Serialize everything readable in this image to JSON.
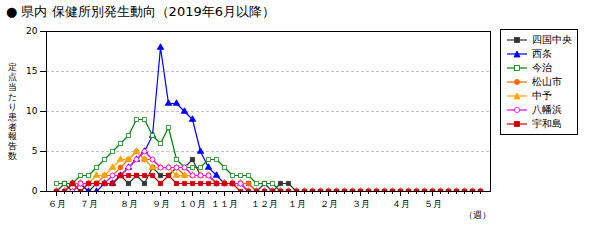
{
  "chart_data": {
    "type": "line",
    "title": "● 県内 保健所別発生動向（2019年6月以降）",
    "ylabel": "定点当たり患者報告数",
    "xlabel": "（週）",
    "categories": [
      "６月",
      null,
      null,
      null,
      "７月",
      null,
      null,
      null,
      null,
      "８月",
      null,
      null,
      null,
      "９月",
      null,
      null,
      null,
      "１０月",
      null,
      null,
      null,
      "１１月",
      null,
      null,
      null,
      null,
      "１２月",
      null,
      null,
      null,
      "１月",
      null,
      null,
      null,
      "２月",
      null,
      null,
      null,
      "３月",
      null,
      null,
      null,
      null,
      "４月",
      null,
      null,
      null,
      "５月",
      null,
      null,
      null,
      null,
      null,
      null
    ],
    "ylim": [
      0,
      20
    ],
    "yticks": [
      0,
      5,
      10,
      15,
      20
    ],
    "grid": true,
    "legend": "right",
    "series": [
      {
        "name": "四国中央",
        "color": "#333333",
        "marker": "square",
        "values": [
          0,
          1,
          0,
          1,
          0,
          1,
          1,
          1,
          2,
          1,
          2,
          1,
          3,
          2,
          2,
          3,
          3,
          4,
          2,
          2,
          1,
          1,
          1,
          1,
          1,
          0,
          1,
          0,
          1,
          1,
          0,
          0,
          0,
          0,
          0,
          0,
          0,
          0,
          0,
          0,
          0,
          0,
          0,
          0,
          0,
          0,
          0,
          0,
          0,
          0,
          0,
          0,
          0,
          0
        ]
      },
      {
        "name": "西条",
        "color": "#0000ff",
        "marker": "triangle",
        "values": [
          0,
          0,
          1,
          1,
          0,
          0,
          1,
          1,
          2,
          3,
          4,
          5,
          7,
          18,
          11,
          11,
          10,
          9,
          5,
          3,
          2,
          1,
          1,
          1,
          0,
          0,
          0,
          0,
          0,
          0,
          0,
          0,
          0,
          0,
          0,
          0,
          0,
          0,
          0,
          0,
          0,
          0,
          0,
          0,
          0,
          0,
          0,
          0,
          0,
          0,
          0,
          0,
          0,
          0
        ]
      },
      {
        "name": "今治",
        "color": "#008000",
        "marker": "square-open",
        "values": [
          1,
          1,
          1,
          2,
          2,
          3,
          4,
          5,
          6,
          7,
          9,
          9,
          7,
          6,
          8,
          4,
          3,
          3,
          3,
          4,
          4,
          3,
          2,
          2,
          2,
          1,
          1,
          1,
          0,
          0,
          0,
          0,
          0,
          0,
          0,
          0,
          0,
          0,
          0,
          0,
          0,
          0,
          0,
          0,
          0,
          0,
          0,
          0,
          0,
          0,
          0,
          0,
          0,
          0
        ]
      },
      {
        "name": "松山市",
        "color": "#ff6600",
        "marker": "circle",
        "values": [
          0,
          0,
          1,
          1,
          1,
          1,
          2,
          2,
          3,
          4,
          5,
          4,
          4,
          3,
          3,
          3,
          2,
          2,
          2,
          2,
          1,
          1,
          1,
          1,
          1,
          0,
          0,
          0,
          0,
          0,
          0,
          0,
          0,
          0,
          0,
          0,
          0,
          0,
          0,
          0,
          0,
          0,
          0,
          0,
          0,
          0,
          0,
          0,
          0,
          0,
          0,
          0,
          0,
          0
        ]
      },
      {
        "name": "中予",
        "color": "#ffa500",
        "marker": "triangle",
        "values": [
          0,
          0,
          0,
          1,
          1,
          2,
          2,
          3,
          4,
          4,
          5,
          4,
          3,
          3,
          3,
          2,
          2,
          2,
          2,
          2,
          1,
          1,
          1,
          1,
          0,
          0,
          0,
          0,
          0,
          0,
          0,
          0,
          0,
          0,
          0,
          0,
          0,
          0,
          0,
          0,
          0,
          0,
          0,
          0,
          0,
          0,
          0,
          0,
          0,
          0,
          0,
          0,
          0,
          0
        ]
      },
      {
        "name": "八幡浜",
        "color": "#ff00ff",
        "marker": "circle-open",
        "values": [
          0,
          0,
          0,
          1,
          1,
          1,
          1,
          2,
          2,
          3,
          4,
          5,
          4,
          3,
          3,
          3,
          3,
          2,
          2,
          2,
          1,
          1,
          1,
          1,
          0,
          0,
          0,
          0,
          0,
          0,
          0,
          0,
          0,
          0,
          0,
          0,
          0,
          0,
          0,
          0,
          0,
          0,
          0,
          0,
          0,
          0,
          0,
          0,
          0,
          0,
          0,
          0,
          0,
          0
        ]
      },
      {
        "name": "宇和島",
        "color": "#cc0000",
        "marker": "square",
        "values": [
          0,
          0,
          1,
          0,
          1,
          1,
          1,
          1,
          2,
          2,
          2,
          2,
          2,
          1,
          2,
          1,
          1,
          1,
          1,
          1,
          1,
          1,
          1,
          0,
          0,
          0,
          0,
          0,
          0,
          0,
          0,
          0,
          0,
          0,
          0,
          0,
          0,
          0,
          0,
          0,
          0,
          0,
          0,
          0,
          0,
          0,
          0,
          0,
          0,
          0,
          0,
          0,
          0,
          0
        ]
      }
    ]
  }
}
